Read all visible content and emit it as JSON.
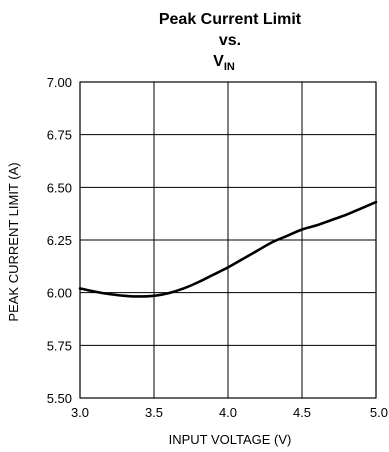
{
  "chart_data": {
    "type": "line",
    "title": {
      "line1": "Peak Current Limit",
      "line2": "vs.",
      "line3_main": "V",
      "line3_sub": "IN"
    },
    "xlabel": "INPUT VOLTAGE (V)",
    "ylabel": "PEAK CURRENT LIMIT (A)",
    "xlim": [
      3.0,
      5.0
    ],
    "ylim": [
      5.5,
      7.0
    ],
    "x_ticks": [
      "3.0",
      "3.5",
      "4.0",
      "4.5",
      "5.0"
    ],
    "y_ticks": [
      "7.00",
      "6.75",
      "6.50",
      "6.25",
      "6.00",
      "5.75",
      "5.50"
    ],
    "x_tick_values": [
      3.0,
      3.5,
      4.0,
      4.5,
      5.0
    ],
    "y_tick_values": [
      7.0,
      6.75,
      6.5,
      6.25,
      6.0,
      5.75,
      5.5
    ],
    "grid": true,
    "line_color": "#000000",
    "grid_color": "#000000",
    "series": [
      {
        "x": [
          3.0,
          3.1,
          3.2,
          3.3,
          3.4,
          3.5,
          3.6,
          3.7,
          3.8,
          3.9,
          4.0,
          4.1,
          4.2,
          4.3,
          4.4,
          4.5,
          4.6,
          4.7,
          4.8,
          4.9,
          5.0
        ],
        "y": [
          6.02,
          6.005,
          5.993,
          5.985,
          5.982,
          5.985,
          5.998,
          6.02,
          6.05,
          6.085,
          6.12,
          6.16,
          6.2,
          6.24,
          6.27,
          6.3,
          6.32,
          6.345,
          6.37,
          6.4,
          6.43
        ]
      }
    ]
  }
}
